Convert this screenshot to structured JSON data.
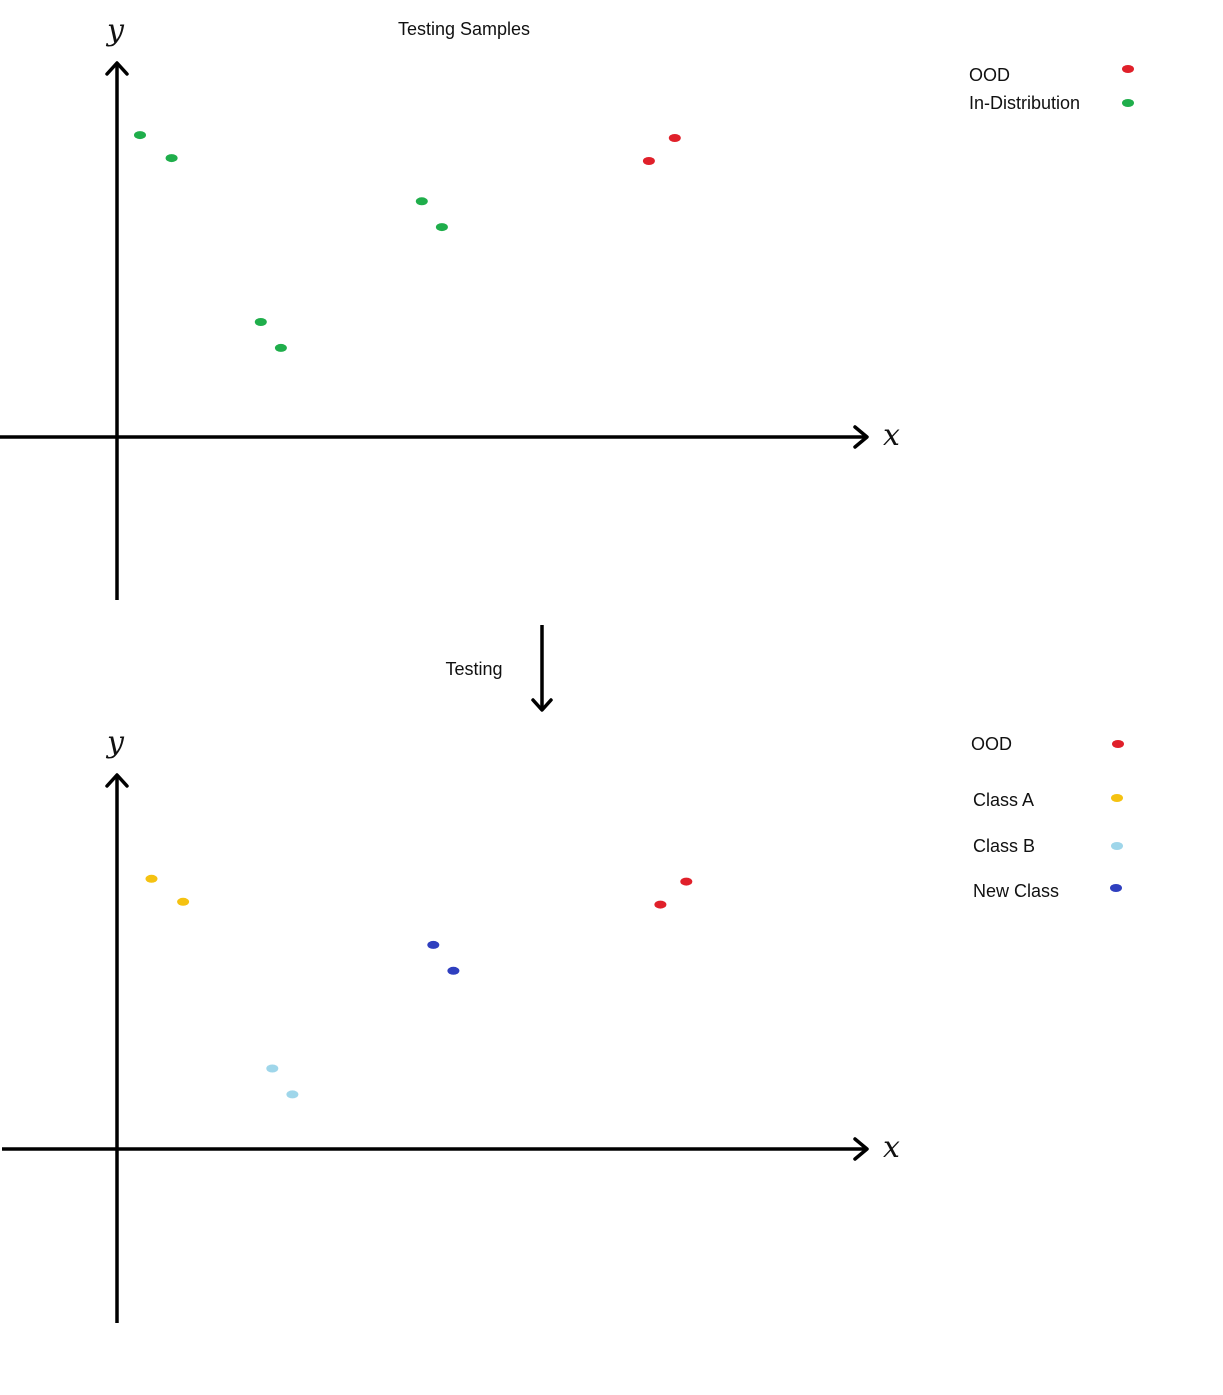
{
  "colors": {
    "ood": "#e0202a",
    "in_distribution": "#1fae4b",
    "class_a": "#f5c211",
    "class_b": "#9fd6ea",
    "new_class": "#2f3fbf"
  },
  "top_panel": {
    "title": "Testing Samples",
    "x_axis_symbol": "x",
    "y_axis_symbol": "y",
    "legend": [
      {
        "label": "OOD",
        "color_key": "ood"
      },
      {
        "label": "In-Distribution",
        "color_key": "in_distribution"
      }
    ],
    "points": [
      {
        "x": 0.4,
        "y": 5.25,
        "color_key": "in_distribution"
      },
      {
        "x": 0.95,
        "y": 4.85,
        "color_key": "in_distribution"
      },
      {
        "x": 2.5,
        "y": 2.0,
        "color_key": "in_distribution"
      },
      {
        "x": 2.85,
        "y": 1.55,
        "color_key": "in_distribution"
      },
      {
        "x": 5.3,
        "y": 4.1,
        "color_key": "in_distribution"
      },
      {
        "x": 5.65,
        "y": 3.65,
        "color_key": "in_distribution"
      },
      {
        "x": 9.25,
        "y": 4.8,
        "color_key": "ood"
      },
      {
        "x": 9.7,
        "y": 5.2,
        "color_key": "ood"
      }
    ]
  },
  "transition": {
    "label": "Testing"
  },
  "bottom_panel": {
    "x_axis_symbol": "x",
    "y_axis_symbol": "y",
    "legend": [
      {
        "label": "OOD",
        "color_key": "ood"
      },
      {
        "label": "Class A",
        "color_key": "class_a"
      },
      {
        "label": "Class B",
        "color_key": "class_b"
      },
      {
        "label": "New Class",
        "color_key": "new_class"
      }
    ],
    "points": [
      {
        "x": 0.6,
        "y": 4.7,
        "color_key": "class_a"
      },
      {
        "x": 1.15,
        "y": 4.3,
        "color_key": "class_a"
      },
      {
        "x": 2.7,
        "y": 1.4,
        "color_key": "class_b"
      },
      {
        "x": 3.05,
        "y": 0.95,
        "color_key": "class_b"
      },
      {
        "x": 5.5,
        "y": 3.55,
        "color_key": "new_class"
      },
      {
        "x": 5.85,
        "y": 3.1,
        "color_key": "new_class"
      },
      {
        "x": 9.45,
        "y": 4.25,
        "color_key": "ood"
      },
      {
        "x": 9.9,
        "y": 4.65,
        "color_key": "ood"
      }
    ]
  }
}
